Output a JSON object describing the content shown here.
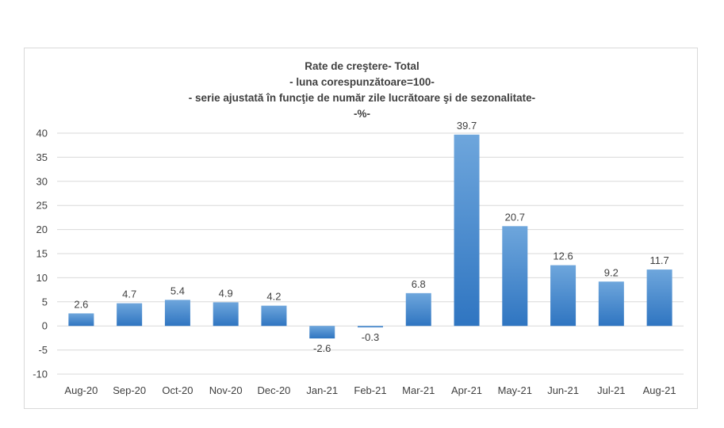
{
  "chart_data": {
    "type": "bar",
    "title": "Rate de creştere- Total",
    "subtitle_lines": [
      "- luna corespunzătoare=100-",
      "- serie ajustată în funcţie de număr zile lucrătoare şi de sezonalitate-",
      "-%-"
    ],
    "categories": [
      "Aug-20",
      "Sep-20",
      "Oct-20",
      "Nov-20",
      "Dec-20",
      "Jan-21",
      "Feb-21",
      "Mar-21",
      "Apr-21",
      "May-21",
      "Jun-21",
      "Jul-21",
      "Aug-21"
    ],
    "values": [
      2.6,
      4.7,
      5.4,
      4.9,
      4.2,
      -2.6,
      -0.3,
      6.8,
      39.7,
      20.7,
      12.6,
      9.2,
      11.7
    ],
    "data_labels": [
      "2.6",
      "4.7",
      "5.4",
      "4.9",
      "4.2",
      "-2.6",
      "-0.3",
      "6.8",
      "39.7",
      "20.7",
      "12.6",
      "9.2",
      "11.7"
    ],
    "ylim": [
      -10,
      40
    ],
    "yticks": [
      40,
      35,
      30,
      25,
      20,
      15,
      10,
      5,
      0,
      -5,
      -10
    ],
    "grid": true,
    "legend": "none",
    "colors": {
      "bar_top": "#6ea6dc",
      "bar_bottom": "#2f75c1",
      "grid": "#d9d9d9",
      "text": "#404040"
    }
  }
}
